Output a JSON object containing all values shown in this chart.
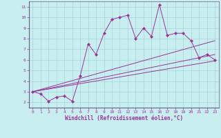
{
  "background_color": "#c8eef0",
  "grid_color": "#a8d8dc",
  "line_color": "#993399",
  "marker_color": "#993399",
  "xlabel": "Windchill (Refroidissement éolien,°C)",
  "xlim": [
    0,
    23
  ],
  "ylim": [
    1.5,
    11.5
  ],
  "yticks": [
    2,
    3,
    4,
    5,
    6,
    7,
    8,
    9,
    10,
    11
  ],
  "xticks": [
    0,
    1,
    2,
    3,
    4,
    5,
    6,
    7,
    8,
    9,
    10,
    11,
    12,
    13,
    14,
    15,
    16,
    17,
    18,
    19,
    20,
    21,
    22,
    23
  ],
  "series": [
    [
      0,
      3.0
    ],
    [
      1,
      2.8
    ],
    [
      2,
      2.1
    ],
    [
      3,
      2.5
    ],
    [
      4,
      2.6
    ],
    [
      5,
      2.1
    ],
    [
      6,
      4.5
    ],
    [
      7,
      7.5
    ],
    [
      8,
      6.5
    ],
    [
      9,
      8.5
    ],
    [
      10,
      9.8
    ],
    [
      11,
      10.0
    ],
    [
      12,
      10.2
    ],
    [
      13,
      8.0
    ],
    [
      14,
      9.0
    ],
    [
      15,
      8.2
    ],
    [
      16,
      11.2
    ],
    [
      17,
      8.3
    ],
    [
      18,
      8.5
    ],
    [
      19,
      8.5
    ],
    [
      20,
      7.8
    ],
    [
      21,
      6.2
    ],
    [
      22,
      6.5
    ],
    [
      23,
      6.0
    ]
  ],
  "line2": [
    [
      0,
      3.0
    ],
    [
      23,
      7.8
    ]
  ],
  "line3": [
    [
      0,
      3.0
    ],
    [
      23,
      6.5
    ]
  ],
  "line4": [
    [
      0,
      3.0
    ],
    [
      23,
      5.9
    ]
  ]
}
